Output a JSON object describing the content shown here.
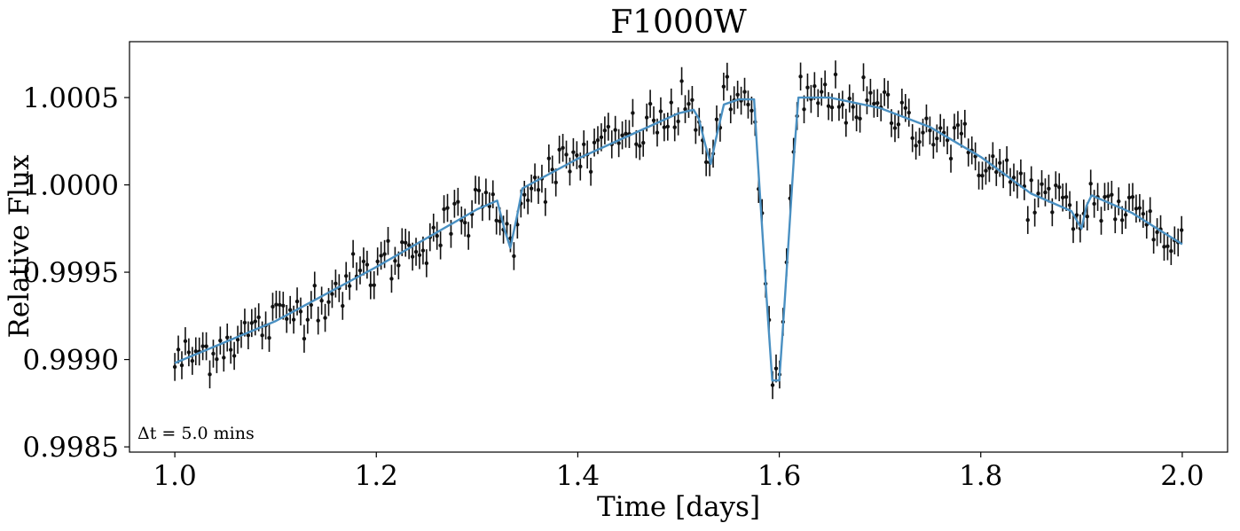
{
  "chart_data": {
    "type": "scatter",
    "title": "F1000W",
    "xlabel": "Time [days]",
    "ylabel": "Relative Flux",
    "annotation": "Δt = 5.0 mins",
    "xlim": [
      0.955,
      2.045
    ],
    "ylim": [
      0.99847,
      1.00082
    ],
    "x_ticks": [
      1.0,
      1.2,
      1.4,
      1.6,
      1.8,
      2.0
    ],
    "x_tick_labels": [
      "1.0",
      "1.2",
      "1.4",
      "1.6",
      "1.8",
      "2.0"
    ],
    "y_ticks": [
      0.9985,
      0.999,
      0.9995,
      1.0,
      1.0005
    ],
    "y_tick_labels": [
      "0.9985",
      "0.9990",
      "0.9995",
      "1.0000",
      "1.0005"
    ],
    "grid": false,
    "colors": {
      "model": "#4a90c2",
      "data": "#111111"
    },
    "series": [
      {
        "name": "model",
        "kind": "line",
        "points": [
          [
            1.0,
            0.99898
          ],
          [
            1.1,
            0.99922
          ],
          [
            1.2,
            0.99953
          ],
          [
            1.3,
            0.99986
          ],
          [
            1.32,
            0.99991
          ],
          [
            1.327,
            0.99975
          ],
          [
            1.333,
            0.99964
          ],
          [
            1.34,
            0.99983
          ],
          [
            1.345,
            0.99998
          ],
          [
            1.4,
            1.00015
          ],
          [
            1.45,
            1.00028
          ],
          [
            1.5,
            1.00041
          ],
          [
            1.515,
            1.00043
          ],
          [
            1.52,
            1.00038
          ],
          [
            1.527,
            1.00022
          ],
          [
            1.532,
            1.00012
          ],
          [
            1.537,
            1.00026
          ],
          [
            1.545,
            1.00046
          ],
          [
            1.56,
            1.00049
          ],
          [
            1.575,
            1.00049
          ],
          [
            1.578,
            1.0002
          ],
          [
            1.583,
            0.99975
          ],
          [
            1.588,
            0.9993
          ],
          [
            1.593,
            0.99888
          ],
          [
            1.6,
            0.99888
          ],
          [
            1.605,
            0.9993
          ],
          [
            1.61,
            0.99975
          ],
          [
            1.615,
            1.0002
          ],
          [
            1.619,
            1.0005
          ],
          [
            1.65,
            1.0005
          ],
          [
            1.7,
            1.00044
          ],
          [
            1.75,
            1.00033
          ],
          [
            1.8,
            1.00016
          ],
          [
            1.85,
            0.99995
          ],
          [
            1.89,
            0.99985
          ],
          [
            1.893,
            0.99982
          ],
          [
            1.9,
            0.99975
          ],
          [
            1.905,
            0.99988
          ],
          [
            1.91,
            0.99994
          ],
          [
            1.95,
            0.99984
          ],
          [
            2.0,
            0.99966
          ]
        ]
      },
      {
        "name": "binned data (5.0 min)",
        "kind": "errorbar",
        "x_start": 1.0,
        "x_step": 0.00347,
        "count": 289,
        "yerr": 8e-05,
        "scatter_sigma": 8e-05,
        "note": "points follow the model curve with ±0.00008 flux error bars"
      }
    ]
  }
}
